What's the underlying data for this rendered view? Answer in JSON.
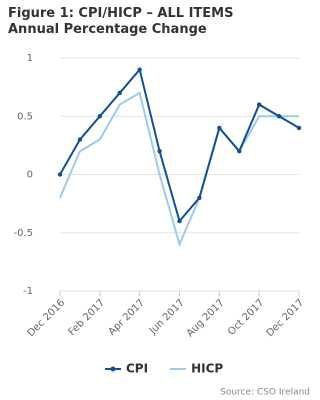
{
  "chart_data": {
    "type": "line",
    "title": "Figure 1: CPI/HICP – ALL ITEMS Annual Percentage Change",
    "categories": [
      "Dec 2016",
      null,
      "Feb 2017",
      null,
      "Apr 2017",
      null,
      "Jun 2017",
      null,
      "Aug 2017",
      null,
      "Oct 2017",
      null,
      "Dec 2017"
    ],
    "series": [
      {
        "name": "CPI",
        "color": "#0e4f9e",
        "markers": true,
        "values": [
          0,
          0.3,
          0.5,
          0.7,
          0.9,
          0.2,
          -0.4,
          -0.2,
          0.4,
          0.2,
          0.6,
          0.5,
          0.4
        ]
      },
      {
        "name": "HICP",
        "color": "#9ccaf0",
        "markers": false,
        "values": [
          -0.2,
          0.2,
          0.3,
          0.6,
          0.7,
          0,
          -0.6,
          -0.2,
          0.4,
          0.2,
          0.5,
          0.5,
          0.5
        ]
      }
    ],
    "ylim": [
      -1,
      1
    ],
    "yticks": [
      -1,
      -0.5,
      0,
      0.5,
      1
    ],
    "grid": true,
    "legend": "bottom",
    "source": "Source: CSO Ireland"
  }
}
